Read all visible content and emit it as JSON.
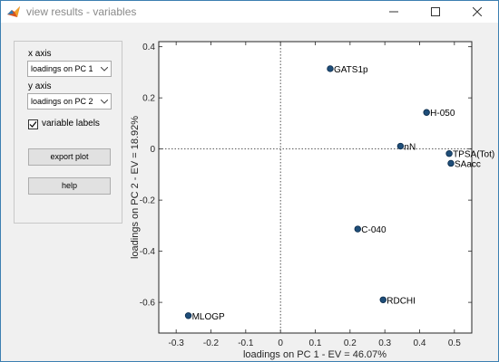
{
  "window": {
    "title": "view results - variables",
    "icons": {
      "app": "matlab-icon",
      "minimize": "minimize-icon",
      "maximize": "maximize-icon",
      "close": "close-icon"
    }
  },
  "controls": {
    "x_axis_label": "x axis",
    "x_axis_value": "loadings on PC 1",
    "y_axis_label": "y axis",
    "y_axis_value": "loadings on PC 2",
    "variable_labels_label": "variable labels",
    "variable_labels_checked": true,
    "export_button": "export plot",
    "help_button": "help"
  },
  "chart_data": {
    "type": "scatter",
    "xlabel": "loadings on PC 1 - EV = 46.07%",
    "ylabel": "loadings on PC 2 - EV = 18.92%",
    "xlim": [
      -0.35,
      0.55
    ],
    "ylim": [
      -0.72,
      0.42
    ],
    "xticks": [
      -0.3,
      -0.2,
      -0.1,
      0,
      0.1,
      0.2,
      0.3,
      0.4,
      0.5
    ],
    "xtick_labels": [
      "-0.3",
      "-0.2",
      "-0.1",
      "0",
      "0.1",
      "0.2",
      "0.3",
      "0.4",
      "0.5"
    ],
    "yticks": [
      -0.6,
      -0.4,
      -0.2,
      0,
      0.2,
      0.4
    ],
    "ytick_labels": [
      "-0.6",
      "-0.4",
      "-0.2",
      "0",
      "0.2",
      "0.4"
    ],
    "grid": false,
    "points": [
      {
        "label": "GATS1p",
        "x": 0.143,
        "y": 0.314
      },
      {
        "label": "H-050",
        "x": 0.42,
        "y": 0.143
      },
      {
        "label": "nN",
        "x": 0.345,
        "y": 0.011
      },
      {
        "label": "TPSA(Tot)",
        "x": 0.485,
        "y": -0.018
      },
      {
        "label": "SAacc",
        "x": 0.49,
        "y": -0.056
      },
      {
        "label": "C-040",
        "x": 0.222,
        "y": -0.313
      },
      {
        "label": "RDCHI",
        "x": 0.295,
        "y": -0.59
      },
      {
        "label": "MLOGP",
        "x": -0.265,
        "y": -0.652
      }
    ]
  }
}
